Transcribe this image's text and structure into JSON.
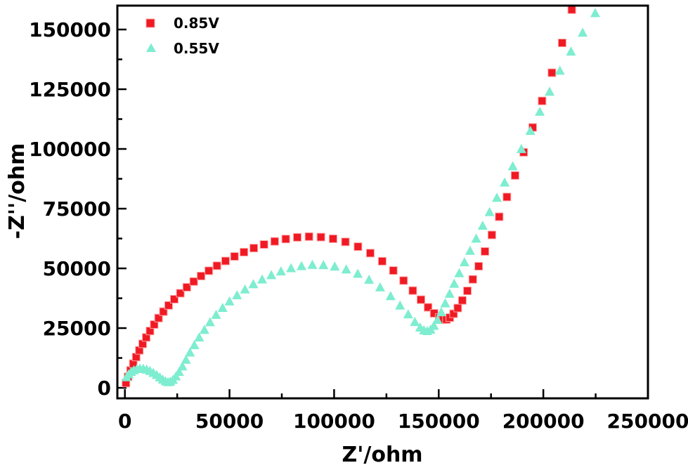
{
  "figure": {
    "background_color": "#ffffff",
    "frame_color": "#000000"
  },
  "chart_data": {
    "type": "scatter",
    "title": "",
    "xlabel": "Z'/ohm",
    "ylabel": "-Z''/ohm",
    "xlim": [
      -3600,
      250000
    ],
    "ylim": [
      -4400,
      160000
    ],
    "x_ticks": [
      0,
      50000,
      100000,
      150000,
      200000,
      250000
    ],
    "x_minor_ticks": [
      25000,
      75000,
      125000,
      175000,
      225000
    ],
    "y_ticks": [
      0,
      25000,
      50000,
      75000,
      100000,
      125000,
      150000
    ],
    "y_minor_ticks": [
      12500,
      37500,
      62500,
      87500,
      112500,
      137500
    ],
    "grid": false,
    "legend_position": "top-left-inside",
    "series": [
      {
        "name": "0.85V",
        "marker": "square",
        "color": "#EF1A23",
        "edge_color": "#FFA3A6",
        "points": [
          [
            500,
            2000
          ],
          [
            1500,
            4600
          ],
          [
            2700,
            7300
          ],
          [
            4000,
            10100
          ],
          [
            5400,
            12900
          ],
          [
            6900,
            15700
          ],
          [
            8500,
            18400
          ],
          [
            10200,
            21100
          ],
          [
            12000,
            23800
          ],
          [
            14000,
            26500
          ],
          [
            16100,
            29200
          ],
          [
            18400,
            31900
          ],
          [
            20900,
            34500
          ],
          [
            23600,
            37100
          ],
          [
            26500,
            39600
          ],
          [
            29600,
            42100
          ],
          [
            32900,
            44500
          ],
          [
            36400,
            46800
          ],
          [
            40100,
            49000
          ],
          [
            44000,
            51100
          ],
          [
            48100,
            53100
          ],
          [
            52400,
            55000
          ],
          [
            56900,
            56800
          ],
          [
            61600,
            58500
          ],
          [
            66500,
            60000
          ],
          [
            71600,
            61300
          ],
          [
            76900,
            62300
          ],
          [
            82400,
            63000
          ],
          [
            88000,
            63300
          ],
          [
            93700,
            63100
          ],
          [
            99500,
            62400
          ],
          [
            105400,
            61100
          ],
          [
            111400,
            59100
          ],
          [
            117300,
            56400
          ],
          [
            123000,
            53000
          ],
          [
            128300,
            49100
          ],
          [
            133200,
            44900
          ],
          [
            137600,
            40700
          ],
          [
            141500,
            36900
          ],
          [
            144900,
            33700
          ],
          [
            147800,
            31200
          ],
          [
            150200,
            29400
          ],
          [
            152100,
            28500
          ],
          [
            153700,
            28600
          ],
          [
            155300,
            29400
          ],
          [
            157100,
            31000
          ],
          [
            159100,
            33400
          ],
          [
            161300,
            36600
          ],
          [
            163700,
            40600
          ],
          [
            166300,
            45400
          ],
          [
            169100,
            50900
          ],
          [
            172100,
            57100
          ],
          [
            175400,
            64000
          ],
          [
            178900,
            71600
          ],
          [
            182600,
            79900
          ],
          [
            186500,
            88900
          ],
          [
            190600,
            98600
          ],
          [
            194900,
            109000
          ],
          [
            199400,
            120100
          ],
          [
            204100,
            131900
          ],
          [
            209000,
            144400
          ],
          [
            213600,
            158300
          ]
        ]
      },
      {
        "name": "0.55V",
        "marker": "triangle",
        "color": "#7EEDD0",
        "edge_color": "#7EEDD0",
        "points": [
          [
            800,
            4400
          ],
          [
            1800,
            5600
          ],
          [
            3000,
            6600
          ],
          [
            4300,
            7300
          ],
          [
            5700,
            7800
          ],
          [
            7200,
            8000
          ],
          [
            8800,
            7900
          ],
          [
            10400,
            7600
          ],
          [
            12000,
            7000
          ],
          [
            13600,
            6200
          ],
          [
            15200,
            5300
          ],
          [
            16700,
            4300
          ],
          [
            18100,
            3400
          ],
          [
            19400,
            2700
          ],
          [
            20600,
            2300
          ],
          [
            21700,
            2500
          ],
          [
            23000,
            3300
          ],
          [
            24400,
            4700
          ],
          [
            25900,
            6600
          ],
          [
            27500,
            8900
          ],
          [
            29200,
            11700
          ],
          [
            31100,
            14700
          ],
          [
            33200,
            17800
          ],
          [
            35500,
            21000
          ],
          [
            38000,
            24200
          ],
          [
            40700,
            27400
          ],
          [
            43600,
            30500
          ],
          [
            46700,
            33400
          ],
          [
            50000,
            36100
          ],
          [
            53600,
            38700
          ],
          [
            57400,
            41100
          ],
          [
            61400,
            43300
          ],
          [
            65600,
            45300
          ],
          [
            70000,
            47100
          ],
          [
            74600,
            48700
          ],
          [
            79400,
            50000
          ],
          [
            84400,
            50900
          ],
          [
            89600,
            51400
          ],
          [
            94900,
            51300
          ],
          [
            100300,
            50700
          ],
          [
            105800,
            49500
          ],
          [
            111300,
            47700
          ],
          [
            116700,
            45200
          ],
          [
            122000,
            42000
          ],
          [
            127000,
            38300
          ],
          [
            131500,
            34400
          ],
          [
            135400,
            30700
          ],
          [
            138600,
            27500
          ],
          [
            141100,
            25200
          ],
          [
            142900,
            24000
          ],
          [
            144500,
            23700
          ],
          [
            146100,
            24300
          ],
          [
            147700,
            25900
          ],
          [
            149400,
            28400
          ],
          [
            151200,
            31600
          ],
          [
            153100,
            35300
          ],
          [
            155200,
            39300
          ],
          [
            157400,
            43500
          ],
          [
            159800,
            47900
          ],
          [
            162300,
            52500
          ],
          [
            165000,
            57300
          ],
          [
            167900,
            62400
          ],
          [
            171000,
            67800
          ],
          [
            174300,
            73500
          ],
          [
            177800,
            79500
          ],
          [
            181500,
            85900
          ],
          [
            185400,
            92700
          ],
          [
            189500,
            99900
          ],
          [
            193800,
            107500
          ],
          [
            198300,
            115500
          ],
          [
            203000,
            123900
          ],
          [
            207900,
            132700
          ],
          [
            213200,
            140700
          ],
          [
            218800,
            148600
          ],
          [
            224800,
            156800
          ]
        ]
      }
    ]
  }
}
